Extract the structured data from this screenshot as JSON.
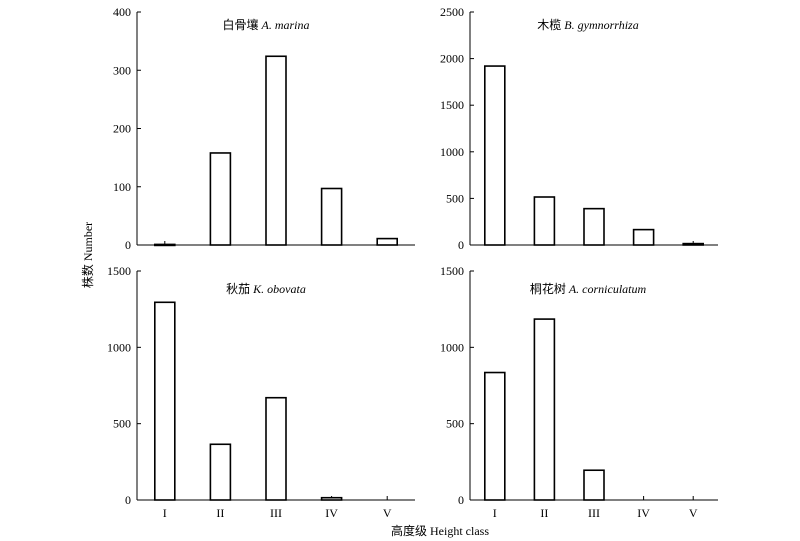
{
  "figure": {
    "ylabel": "株数 Number",
    "xlabel": "高度级 Height class"
  },
  "chart_data": [
    {
      "type": "bar",
      "title": "白骨壤",
      "title_italic": "A. marina",
      "categories": [
        "I",
        "II",
        "III",
        "IV",
        "V"
      ],
      "values": [
        1,
        158,
        324,
        97,
        11
      ],
      "ylim": [
        0,
        400
      ],
      "yticks": [
        0,
        100,
        200,
        300,
        400
      ],
      "show_x_ticklabels": false
    },
    {
      "type": "bar",
      "title": "木榄",
      "title_italic": "B. gymnorrhiza",
      "categories": [
        "I",
        "II",
        "III",
        "IV",
        "V"
      ],
      "values": [
        1920,
        515,
        390,
        165,
        15
      ],
      "ylim": [
        0,
        2500
      ],
      "yticks": [
        0,
        500,
        1000,
        1500,
        2000,
        2500
      ],
      "show_x_ticklabels": false
    },
    {
      "type": "bar",
      "title": "秋茄",
      "title_italic": "K. obovata",
      "categories": [
        "I",
        "II",
        "III",
        "IV",
        "V"
      ],
      "values": [
        1295,
        365,
        670,
        15,
        0
      ],
      "ylim": [
        0,
        1500
      ],
      "yticks": [
        0,
        500,
        1000,
        1500
      ],
      "show_x_ticklabels": true
    },
    {
      "type": "bar",
      "title": "桐花树",
      "title_italic": "A. corniculatum",
      "categories": [
        "I",
        "II",
        "III",
        "IV",
        "V"
      ],
      "values": [
        835,
        1185,
        195,
        0,
        0
      ],
      "ylim": [
        0,
        1500
      ],
      "yticks": [
        0,
        500,
        1000,
        1500
      ],
      "show_x_ticklabels": true
    }
  ]
}
